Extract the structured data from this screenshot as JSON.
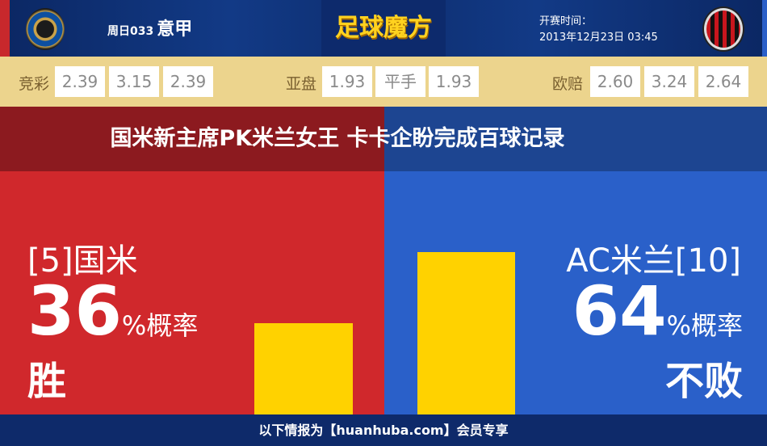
{
  "header": {
    "match_no": "周日033",
    "league": "意甲",
    "brand": "足球魔方",
    "kickoff_label": "开赛时间：",
    "kickoff_time": "2013年12月23日 03:45"
  },
  "odds": {
    "jingcai": {
      "label": "竞彩",
      "values": [
        "2.39",
        "3.15",
        "2.39"
      ]
    },
    "yapan": {
      "label": "亚盘",
      "values": [
        "1.93",
        "平手",
        "1.93"
      ]
    },
    "oupei": {
      "label": "欧赔",
      "values": [
        "2.60",
        "3.24",
        "2.64"
      ]
    }
  },
  "headline": "国米新主席PK米兰女王  卡卡企盼完成百球记录",
  "home": {
    "team": "[5]国米",
    "percent": "36",
    "percent_suffix": "%概率",
    "result": "胜",
    "probability": 36
  },
  "away": {
    "team": "AC米兰[10]",
    "percent": "64",
    "percent_suffix": "%概率",
    "result": "不败",
    "probability": 64
  },
  "colors": {
    "home": "#d0282c",
    "away": "#2a60c9",
    "bar": "#ffd200",
    "odds_band": "#ecd48d"
  },
  "footer": "以下情报为【huanhuba.com】会员专享"
}
